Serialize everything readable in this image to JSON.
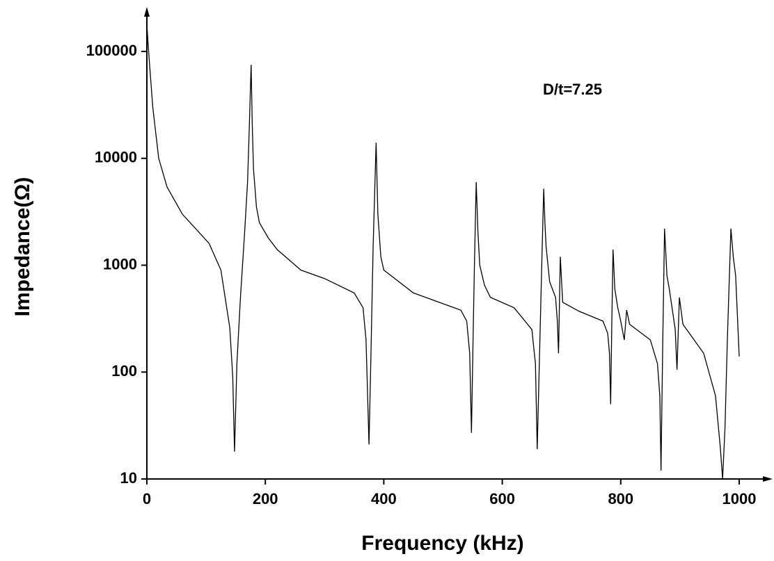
{
  "chart_data": {
    "type": "line",
    "annotation": "D/t=7.25",
    "x_label": "Frequency (kHz)",
    "y_label": "Impedance(Ω)",
    "log_y": true,
    "xlim": [
      0,
      1050
    ],
    "ylim": [
      10,
      250000
    ],
    "xticks": [
      0,
      200,
      400,
      600,
      800,
      1000
    ],
    "yticks": [
      10,
      100,
      1000,
      10000,
      100000
    ],
    "series": [
      {
        "name": "Impedance",
        "color": "#000000",
        "x": [
          0,
          2,
          5,
          10,
          20,
          34,
          60,
          105,
          125,
          140,
          145,
          148,
          152,
          158,
          165,
          170,
          173,
          176,
          178,
          180,
          185,
          190,
          205,
          220,
          260,
          300,
          350,
          365,
          370,
          375,
          378,
          382,
          387,
          390,
          395,
          400,
          450,
          530,
          540,
          545,
          548,
          551,
          553,
          556,
          559,
          562,
          570,
          580,
          620,
          650,
          656,
          659,
          663,
          667,
          670,
          672,
          674,
          680,
          690,
          693,
          695,
          698,
          702,
          730,
          770,
          778,
          781,
          783,
          785,
          787,
          790,
          795,
          800,
          806,
          810,
          815,
          850,
          862,
          866,
          868,
          871,
          874,
          878,
          882,
          892,
          895,
          899,
          905,
          940,
          960,
          968,
          972,
          976,
          980,
          986,
          990,
          994,
          1000
        ],
        "values": [
          180000,
          120000,
          70000,
          30000,
          10000,
          5400,
          3000,
          1600,
          900,
          260,
          90,
          18,
          120,
          500,
          2000,
          6000,
          20000,
          75000,
          20000,
          8000,
          3500,
          2500,
          1800,
          1400,
          900,
          750,
          550,
          400,
          200,
          21,
          120,
          1500,
          14000,
          3000,
          1200,
          900,
          550,
          380,
          300,
          150,
          27,
          250,
          1000,
          6000,
          2000,
          1000,
          650,
          500,
          400,
          250,
          120,
          19,
          150,
          1200,
          5200,
          2500,
          1500,
          700,
          500,
          300,
          150,
          1200,
          450,
          370,
          300,
          230,
          150,
          50,
          300,
          1400,
          600,
          400,
          300,
          200,
          380,
          280,
          200,
          120,
          60,
          12,
          200,
          2200,
          800,
          600,
          250,
          105,
          500,
          280,
          150,
          60,
          20,
          10,
          30,
          200,
          2200,
          1200,
          800,
          140
        ]
      }
    ]
  }
}
